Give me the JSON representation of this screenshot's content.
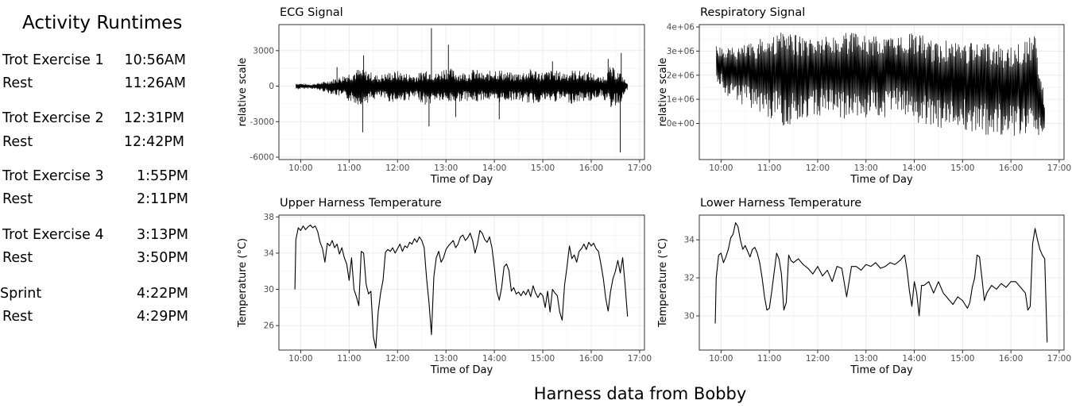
{
  "sidebar": {
    "title": "Activity Runtimes",
    "activities": [
      {
        "label": "Trot Exercise 1",
        "time": "10:56AM"
      },
      {
        "label": "Rest",
        "time": "11:26AM"
      },
      {
        "label": "Trot Exercise 2",
        "time": "12:31PM"
      },
      {
        "label": "Rest",
        "time": "12:42PM"
      },
      {
        "label": "Trot Exercise 3",
        "time": "1:55PM"
      },
      {
        "label": "Rest",
        "time": "2:11PM"
      },
      {
        "label": "Trot Exercise 4",
        "time": "3:13PM"
      },
      {
        "label": "Rest",
        "time": "3:50PM"
      },
      {
        "label": "Sprint",
        "time": "4:22PM"
      },
      {
        "label": "Rest",
        "time": "4:29PM"
      }
    ]
  },
  "footer": {
    "caption": "Harness data from Bobby"
  },
  "colors": {
    "line": "#000000",
    "grid": "#ebebeb",
    "panel_border": "#333333",
    "text": "#000000",
    "tick_text": "#4d4d4d"
  },
  "chart_data": [
    {
      "id": "ecg",
      "type": "line",
      "title": "ECG Signal",
      "xlabel": "Time of Day",
      "ylabel": "relative scale",
      "x_tick_labels": [
        "10:00",
        "11:00",
        "12:00",
        "13:00",
        "14:00",
        "15:00",
        "16:00",
        "17:00"
      ],
      "x_ticks": [
        10,
        11,
        12,
        13,
        14,
        15,
        16,
        17
      ],
      "xlim": [
        9.55,
        17.1
      ],
      "y_tick_labels": [
        "3000",
        "0",
        "-3000",
        "-6000"
      ],
      "y_ticks": [
        3000,
        0,
        -3000,
        -6000
      ],
      "ylim": [
        -6200,
        5200
      ],
      "envelope": {
        "x": [
          9.9,
          10.2,
          10.5,
          10.8,
          11.0,
          11.2,
          11.4,
          11.6,
          11.8,
          12.0,
          12.2,
          12.4,
          12.6,
          12.8,
          13.0,
          13.2,
          13.4,
          13.6,
          13.8,
          14.0,
          14.2,
          14.4,
          14.6,
          14.8,
          15.0,
          15.2,
          15.4,
          15.6,
          15.8,
          16.0,
          16.2,
          16.4,
          16.6,
          16.75
        ],
        "upper": [
          300,
          150,
          400,
          800,
          1200,
          1500,
          1300,
          900,
          1200,
          1300,
          1100,
          1000,
          1600,
          1100,
          1700,
          1300,
          1200,
          1500,
          1000,
          1600,
          1300,
          1100,
          1300,
          1500,
          1200,
          1400,
          1200,
          1400,
          1300,
          1200,
          700,
          1700,
          1200,
          200
        ],
        "lower": [
          -300,
          -200,
          -500,
          -900,
          -1300,
          -1600,
          -1400,
          -1000,
          -1300,
          -1400,
          -1200,
          -1100,
          -1700,
          -1200,
          -1500,
          -1400,
          -1200,
          -1500,
          -1100,
          -1500,
          -1300,
          -1200,
          -1400,
          -1500,
          -1300,
          -1400,
          -1200,
          -1500,
          -1300,
          -1300,
          -800,
          -1900,
          -1500,
          -300
        ]
      },
      "spikes": [
        {
          "x": 10.75,
          "y": 1600
        },
        {
          "x": 11.3,
          "y": 2600
        },
        {
          "x": 11.28,
          "y": -3900
        },
        {
          "x": 12.7,
          "y": 4900
        },
        {
          "x": 12.65,
          "y": -3400
        },
        {
          "x": 13.05,
          "y": 3500
        },
        {
          "x": 14.1,
          "y": -2800
        },
        {
          "x": 13.2,
          "y": -2600
        },
        {
          "x": 16.62,
          "y": 2800
        },
        {
          "x": 16.6,
          "y": -5600
        },
        {
          "x": 16.35,
          "y": 2300
        },
        {
          "x": 15.2,
          "y": 2100
        }
      ]
    },
    {
      "id": "resp",
      "type": "line",
      "title": "Respiratory Signal",
      "xlabel": "Time of Day",
      "ylabel": "relative scale",
      "x_tick_labels": [
        "10:00",
        "11:00",
        "12:00",
        "13:00",
        "14:00",
        "15:00",
        "16:00",
        "17:00"
      ],
      "x_ticks": [
        10,
        11,
        12,
        13,
        14,
        15,
        16,
        17
      ],
      "xlim": [
        9.55,
        17.1
      ],
      "y_tick_labels": [
        "4e+06",
        "3e+06",
        "2e+06",
        "1e+06",
        "0e+00"
      ],
      "y_ticks": [
        4000000,
        3000000,
        2000000,
        1000000,
        0
      ],
      "ylim": [
        -1500000,
        4100000
      ],
      "envelope": {
        "x": [
          9.9,
          10.1,
          10.3,
          10.5,
          10.7,
          10.9,
          11.1,
          11.3,
          11.5,
          11.7,
          11.9,
          12.1,
          12.3,
          12.5,
          12.7,
          12.9,
          13.1,
          13.3,
          13.5,
          13.7,
          13.9,
          14.1,
          14.3,
          14.5,
          14.7,
          14.9,
          15.1,
          15.3,
          15.5,
          15.7,
          15.9,
          16.1,
          16.3,
          16.5,
          16.7
        ],
        "upper": [
          3200000,
          3100000,
          3200000,
          3300000,
          3400000,
          3600000,
          3750000,
          3800000,
          3700000,
          3700000,
          3600000,
          3700000,
          3650000,
          3750000,
          3800000,
          3700000,
          3650000,
          3600000,
          3650000,
          3700000,
          3750000,
          3800000,
          3500000,
          3400000,
          3450000,
          3500000,
          3400000,
          3350000,
          3300000,
          3350000,
          3200000,
          3300000,
          3450000,
          3700000,
          1000000
        ],
        "lower": [
          1800000,
          1200000,
          900000,
          700000,
          500000,
          200000,
          100000,
          -100000,
          0,
          100000,
          400000,
          300000,
          200000,
          100000,
          200000,
          100000,
          300000,
          200000,
          300000,
          400000,
          100000,
          0,
          -200000,
          -300000,
          -100000,
          -200000,
          -300000,
          -400000,
          -500000,
          -400000,
          -600000,
          -500000,
          -400000,
          -500000,
          -700000
        ]
      }
    },
    {
      "id": "upper_temp",
      "type": "line",
      "title": "Upper Harness Temperature",
      "xlabel": "Time of Day",
      "ylabel": "Temperature (°C)",
      "x_tick_labels": [
        "10:00",
        "11:00",
        "12:00",
        "13:00",
        "14:00",
        "15:00",
        "16:00",
        "17:00"
      ],
      "x_ticks": [
        10,
        11,
        12,
        13,
        14,
        15,
        16,
        17
      ],
      "xlim": [
        9.55,
        17.1
      ],
      "y_tick_labels": [
        "38",
        "34",
        "30",
        "26"
      ],
      "y_ticks": [
        38,
        34,
        30,
        26
      ],
      "ylim": [
        23.3,
        38.2
      ],
      "x": [
        9.88,
        9.9,
        9.95,
        10.0,
        10.05,
        10.1,
        10.15,
        10.2,
        10.25,
        10.3,
        10.35,
        10.4,
        10.45,
        10.5,
        10.55,
        10.6,
        10.65,
        10.7,
        10.75,
        10.8,
        10.85,
        10.9,
        10.95,
        11.0,
        11.05,
        11.1,
        11.15,
        11.2,
        11.25,
        11.3,
        11.35,
        11.4,
        11.45,
        11.5,
        11.55,
        11.6,
        11.65,
        11.7,
        11.75,
        11.8,
        11.85,
        11.9,
        11.95,
        12.0,
        12.05,
        12.1,
        12.15,
        12.2,
        12.25,
        12.3,
        12.35,
        12.4,
        12.45,
        12.5,
        12.55,
        12.6,
        12.65,
        12.7,
        12.75,
        12.8,
        12.85,
        12.9,
        12.95,
        13.0,
        13.05,
        13.1,
        13.15,
        13.2,
        13.25,
        13.3,
        13.35,
        13.4,
        13.45,
        13.5,
        13.55,
        13.6,
        13.65,
        13.7,
        13.75,
        13.8,
        13.85,
        13.9,
        13.95,
        14.0,
        14.05,
        14.1,
        14.15,
        14.2,
        14.25,
        14.3,
        14.35,
        14.4,
        14.45,
        14.5,
        14.55,
        14.6,
        14.65,
        14.7,
        14.75,
        14.8,
        14.85,
        14.9,
        14.95,
        15.0,
        15.05,
        15.1,
        15.15,
        15.2,
        15.25,
        15.3,
        15.35,
        15.4,
        15.45,
        15.5,
        15.55,
        15.6,
        15.65,
        15.7,
        15.75,
        15.8,
        15.85,
        15.9,
        15.95,
        16.0,
        16.05,
        16.1,
        16.15,
        16.2,
        16.25,
        16.3,
        16.35,
        16.4,
        16.45,
        16.5,
        16.55,
        16.6,
        16.65,
        16.7,
        16.75
      ],
      "y": [
        30.0,
        35.5,
        36.8,
        36.5,
        37.0,
        36.6,
        36.9,
        37.1,
        36.8,
        37.0,
        36.4,
        35.2,
        34.5,
        33.0,
        35.1,
        34.8,
        35.4,
        34.6,
        35.0,
        33.9,
        34.6,
        33.5,
        32.8,
        31.0,
        33.5,
        30.0,
        29.2,
        28.2,
        34.2,
        34.0,
        30.6,
        29.5,
        29.8,
        24.8,
        23.5,
        27.5,
        29.6,
        31.0,
        34.1,
        34.4,
        34.2,
        34.6,
        34.0,
        34.5,
        35.0,
        34.2,
        34.8,
        34.6,
        35.2,
        35.0,
        35.6,
        35.2,
        35.8,
        35.4,
        34.6,
        31.2,
        28.5,
        25.0,
        31.4,
        33.5,
        34.2,
        33.0,
        33.5,
        34.4,
        34.8,
        35.1,
        35.4,
        34.6,
        35.0,
        35.8,
        36.0,
        35.4,
        35.7,
        36.2,
        35.4,
        34.0,
        35.0,
        36.5,
        36.2,
        35.5,
        35.2,
        35.8,
        34.6,
        32.4,
        29.8,
        28.8,
        30.2,
        32.5,
        32.8,
        32.1,
        29.8,
        30.2,
        29.5,
        29.7,
        29.3,
        29.8,
        29.4,
        30.0,
        29.2,
        30.4,
        29.6,
        29.1,
        29.6,
        29.3,
        28.0,
        29.8,
        27.5,
        30.0,
        29.6,
        29.3,
        27.5,
        26.6,
        30.5,
        32.5,
        34.8,
        33.4,
        33.8,
        33.0,
        34.2,
        34.5,
        35.0,
        34.4,
        35.2,
        34.8,
        35.1,
        34.5,
        34.2,
        32.8,
        31.2,
        29.0,
        27.6,
        29.8,
        31.2,
        32.0,
        33.2,
        31.8,
        33.5,
        30.5,
        27.0
      ]
    },
    {
      "id": "lower_temp",
      "type": "line",
      "title": "Lower Harness Temperature",
      "xlabel": "Time of Day",
      "ylabel": "Temperature (°C)",
      "x_tick_labels": [
        "10:00",
        "11:00",
        "12:00",
        "13:00",
        "14:00",
        "15:00",
        "16:00",
        "17:00"
      ],
      "x_ticks": [
        10,
        11,
        12,
        13,
        14,
        15,
        16,
        17
      ],
      "xlim": [
        9.55,
        17.1
      ],
      "y_tick_labels": [
        "34",
        "32",
        "30"
      ],
      "y_ticks": [
        34,
        32,
        30
      ],
      "ylim": [
        28.2,
        35.3
      ],
      "x": [
        9.88,
        9.9,
        9.95,
        10.0,
        10.05,
        10.1,
        10.15,
        10.2,
        10.25,
        10.3,
        10.35,
        10.4,
        10.45,
        10.5,
        10.55,
        10.6,
        10.65,
        10.7,
        10.75,
        10.8,
        10.85,
        10.9,
        10.95,
        11.0,
        11.05,
        11.1,
        11.15,
        11.2,
        11.25,
        11.3,
        11.35,
        11.4,
        11.45,
        11.5,
        11.6,
        11.7,
        11.8,
        11.9,
        12.0,
        12.1,
        12.2,
        12.3,
        12.4,
        12.5,
        12.6,
        12.7,
        12.8,
        12.9,
        13.0,
        13.1,
        13.2,
        13.3,
        13.4,
        13.5,
        13.6,
        13.7,
        13.8,
        13.85,
        13.9,
        13.95,
        14.0,
        14.05,
        14.1,
        14.15,
        14.2,
        14.3,
        14.4,
        14.5,
        14.6,
        14.7,
        14.8,
        14.9,
        15.0,
        15.1,
        15.15,
        15.2,
        15.25,
        15.3,
        15.35,
        15.4,
        15.45,
        15.5,
        15.6,
        15.7,
        15.8,
        15.9,
        16.0,
        16.1,
        16.2,
        16.3,
        16.35,
        16.4,
        16.45,
        16.5,
        16.55,
        16.6,
        16.65,
        16.7,
        16.75
      ],
      "y": [
        29.6,
        32.0,
        33.2,
        33.3,
        32.8,
        33.1,
        33.5,
        34.1,
        34.3,
        34.9,
        34.7,
        34.0,
        33.5,
        33.7,
        33.4,
        33.1,
        33.5,
        33.6,
        33.3,
        32.8,
        32.0,
        31.0,
        30.3,
        30.4,
        31.3,
        32.3,
        33.3,
        33.0,
        32.2,
        30.3,
        30.7,
        33.2,
        32.9,
        32.8,
        33.0,
        32.7,
        32.5,
        32.2,
        32.6,
        32.1,
        32.4,
        31.8,
        32.6,
        32.5,
        31.0,
        32.6,
        32.6,
        32.4,
        32.7,
        32.6,
        32.8,
        32.5,
        32.6,
        32.8,
        32.7,
        32.9,
        33.2,
        32.4,
        31.3,
        30.5,
        31.8,
        31.2,
        30.0,
        31.6,
        31.6,
        31.8,
        31.2,
        31.8,
        31.2,
        30.9,
        30.6,
        31.0,
        30.8,
        30.4,
        30.7,
        31.5,
        32.0,
        33.2,
        33.1,
        32.0,
        30.8,
        31.2,
        31.6,
        31.4,
        31.7,
        31.5,
        31.8,
        31.8,
        31.5,
        31.2,
        30.3,
        30.5,
        33.8,
        34.6,
        34.0,
        33.5,
        33.2,
        33.0,
        28.6
      ]
    }
  ]
}
